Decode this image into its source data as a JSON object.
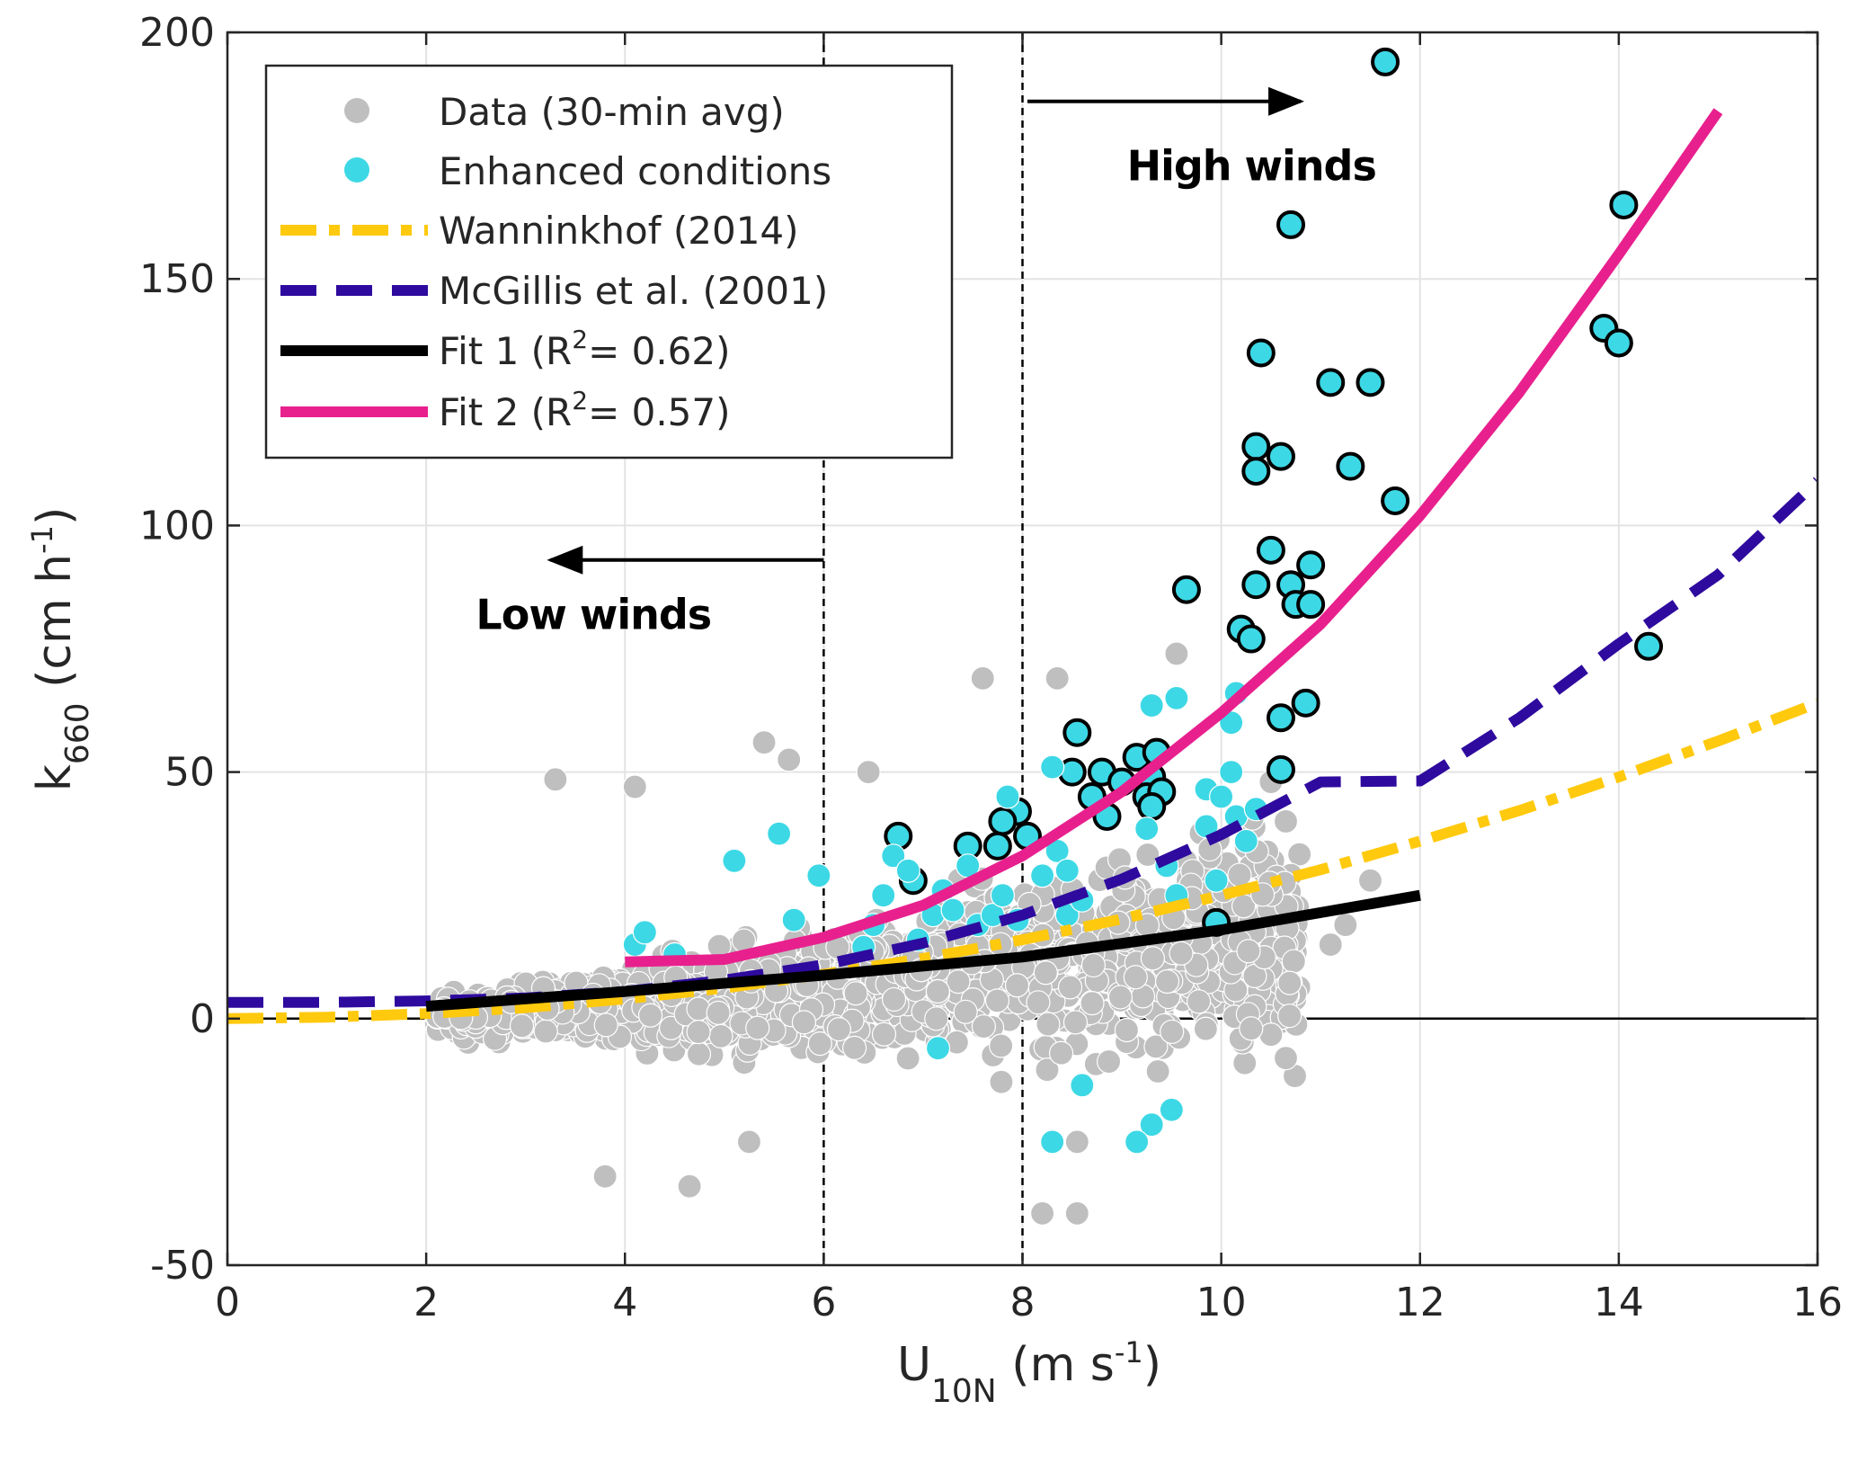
{
  "chart_data": {
    "type": "scatter",
    "xlabel": {
      "main": "U",
      "sub": "10N",
      "unit_open": " (m s",
      "sup": "-1",
      "unit_close": ")"
    },
    "ylabel": {
      "main": "k",
      "sub": "660",
      "unit_open": " (cm h",
      "sup": "-1",
      "unit_close": ")"
    },
    "xlim": [
      0,
      16
    ],
    "ylim": [
      -50,
      200
    ],
    "xticks": [
      0,
      2,
      4,
      6,
      8,
      10,
      12,
      14,
      16
    ],
    "yticks": [
      -50,
      0,
      50,
      100,
      150,
      200
    ],
    "grid": true,
    "legend_position": "top-left",
    "legend": [
      {
        "label": "Data (30-min avg)",
        "symbol": "circle",
        "color": "#bfbfbf"
      },
      {
        "label": "Enhanced conditions",
        "symbol": "circle",
        "color": "#3dd8e5"
      },
      {
        "label": "Wanninkhof (2014)",
        "symbol": "dashdot",
        "color": "#ffc90e"
      },
      {
        "label": "McGillis et al. (2001)",
        "symbol": "dash",
        "color": "#2e0a9e"
      },
      {
        "label_parts": [
          "Fit 1 (R",
          "2",
          "= 0.62)"
        ],
        "symbol": "line",
        "color": "#000000"
      },
      {
        "label_parts": [
          "Fit 2 (R",
          "2",
          "= 0.57)"
        ],
        "symbol": "line",
        "color": "#e8208e"
      }
    ],
    "annotations": [
      {
        "text": "High winds",
        "x": 9.05,
        "y": 170,
        "arrow": "right",
        "from_x": 8.05,
        "to_x": 10.8,
        "arrow_y": 186
      },
      {
        "text": "Low winds",
        "x": 2.5,
        "y": 79,
        "arrow": "left",
        "from_x": 6.0,
        "to_x": 3.25,
        "arrow_y": 93
      }
    ],
    "vlines": [
      6,
      8
    ],
    "hline": 0,
    "series": [
      {
        "name": "Wanninkhof (2014)",
        "kind": "line",
        "style": "dashdot",
        "color": "#ffc90e",
        "x": [
          0,
          1,
          2,
          3,
          4,
          5,
          6,
          7,
          8,
          9,
          10,
          11,
          12,
          13,
          14,
          15,
          16
        ],
        "y": [
          0,
          0.3,
          1,
          2.2,
          4,
          6.2,
          9,
          12.2,
          16,
          20.2,
          25,
          30.2,
          36,
          42.2,
          49,
          56.3,
          64
        ]
      },
      {
        "name": "McGillis et al. (2001)",
        "kind": "line",
        "style": "dash",
        "color": "#2e0a9e",
        "x": [
          0,
          1,
          2,
          3,
          4,
          5,
          6,
          7,
          8,
          9,
          10,
          11,
          12,
          13,
          14,
          15,
          16
        ],
        "y": [
          3.3,
          3.3,
          3.6,
          4.2,
          5.5,
          7.8,
          10.9,
          15.3,
          21,
          28.3,
          37.3,
          48,
          48.2,
          61,
          76,
          90,
          109
        ]
      },
      {
        "name": "Fit 1",
        "kind": "line",
        "style": "solid",
        "color": "#000000",
        "x": [
          2,
          4,
          6,
          8,
          10,
          12
        ],
        "y": [
          2.5,
          5.5,
          8.8,
          12.5,
          18,
          25
        ]
      },
      {
        "name": "Fit 2",
        "kind": "line",
        "style": "solid",
        "color": "#e8208e",
        "x": [
          4,
          5,
          6,
          7,
          8,
          9,
          10,
          11,
          12,
          13,
          14,
          15
        ],
        "y": [
          11.5,
          12,
          16.5,
          23,
          33,
          46,
          62,
          80,
          102,
          127,
          155,
          184
        ]
      },
      {
        "name": "Enhanced conditions (outlined)",
        "kind": "scatter",
        "color": "#3dd8e5",
        "outlined": true,
        "points": [
          [
            11.65,
            194
          ],
          [
            14.05,
            165
          ],
          [
            10.7,
            161
          ],
          [
            13.85,
            140
          ],
          [
            14.0,
            137
          ],
          [
            10.4,
            135
          ],
          [
            11.1,
            129
          ],
          [
            11.5,
            129
          ],
          [
            10.35,
            116
          ],
          [
            10.6,
            114
          ],
          [
            10.35,
            111
          ],
          [
            11.3,
            112
          ],
          [
            11.75,
            105
          ],
          [
            10.5,
            95
          ],
          [
            10.9,
            92
          ],
          [
            10.35,
            88
          ],
          [
            10.7,
            88
          ],
          [
            10.75,
            84
          ],
          [
            10.9,
            84
          ],
          [
            9.65,
            87
          ],
          [
            10.2,
            79
          ],
          [
            10.3,
            77
          ],
          [
            14.3,
            75.5
          ],
          [
            10.85,
            64
          ],
          [
            10.6,
            61
          ],
          [
            10.6,
            50.5
          ],
          [
            8.55,
            58
          ],
          [
            8.5,
            50
          ],
          [
            8.8,
            50
          ],
          [
            8.7,
            45
          ],
          [
            8.85,
            41
          ],
          [
            9.0,
            48
          ],
          [
            9.15,
            53
          ],
          [
            9.35,
            54
          ],
          [
            9.3,
            49
          ],
          [
            9.25,
            45
          ],
          [
            9.4,
            46
          ],
          [
            9.3,
            43
          ],
          [
            7.95,
            42
          ],
          [
            7.8,
            40
          ],
          [
            7.75,
            35
          ],
          [
            7.45,
            35
          ],
          [
            8.05,
            37
          ],
          [
            6.75,
            37
          ],
          [
            6.9,
            28
          ],
          [
            9.95,
            19.5
          ]
        ]
      },
      {
        "name": "Enhanced conditions",
        "kind": "scatter",
        "color": "#3dd8e5",
        "outlined": false,
        "points": [
          [
            4.1,
            15
          ],
          [
            4.2,
            17.5
          ],
          [
            4.5,
            13
          ],
          [
            5.1,
            32
          ],
          [
            5.55,
            37.5
          ],
          [
            5.7,
            20
          ],
          [
            5.95,
            29
          ],
          [
            6.4,
            14.5
          ],
          [
            6.5,
            19
          ],
          [
            6.6,
            25
          ],
          [
            6.7,
            33
          ],
          [
            6.85,
            30
          ],
          [
            6.95,
            16
          ],
          [
            7.1,
            21
          ],
          [
            7.2,
            26
          ],
          [
            7.3,
            22
          ],
          [
            7.45,
            31
          ],
          [
            7.55,
            19
          ],
          [
            7.7,
            21
          ],
          [
            7.8,
            25
          ],
          [
            7.85,
            45
          ],
          [
            7.95,
            20
          ],
          [
            8.2,
            29
          ],
          [
            8.35,
            34
          ],
          [
            8.45,
            30
          ],
          [
            8.3,
            51
          ],
          [
            8.45,
            21
          ],
          [
            8.6,
            24
          ],
          [
            9.25,
            38.5
          ],
          [
            9.3,
            63.5
          ],
          [
            9.55,
            65
          ],
          [
            9.45,
            31
          ],
          [
            9.55,
            25
          ],
          [
            9.85,
            46.5
          ],
          [
            9.85,
            39
          ],
          [
            9.95,
            28
          ],
          [
            10.0,
            45
          ],
          [
            10.15,
            66
          ],
          [
            10.1,
            60
          ],
          [
            10.1,
            50
          ],
          [
            10.15,
            41
          ],
          [
            10.35,
            42.5
          ],
          [
            10.25,
            36
          ],
          [
            7.15,
            -6
          ],
          [
            8.6,
            -13.5
          ],
          [
            8.3,
            -25
          ],
          [
            9.3,
            -21.5
          ],
          [
            9.15,
            -25
          ],
          [
            9.5,
            -18.5
          ]
        ]
      }
    ]
  }
}
